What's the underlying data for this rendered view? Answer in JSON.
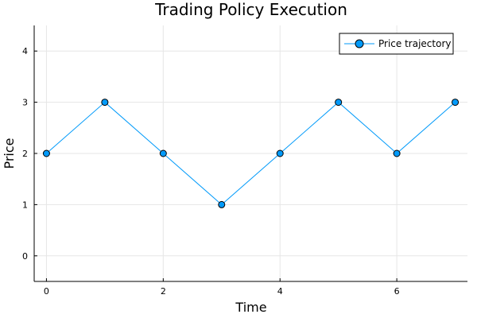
{
  "chart_data": {
    "type": "line",
    "title": "Trading Policy Execution",
    "xlabel": "Time",
    "ylabel": "Price",
    "x": [
      0,
      1,
      2,
      3,
      4,
      5,
      6,
      7
    ],
    "series": [
      {
        "name": "Price trajectory",
        "values": [
          2,
          3,
          2,
          1,
          2,
          3,
          2,
          3
        ],
        "color": "#009AFA"
      }
    ],
    "xlim": [
      -0.21,
      7.21
    ],
    "ylim": [
      -0.5,
      4.5
    ],
    "xticks": [
      0,
      2,
      4,
      6
    ],
    "yticks": [
      0,
      1,
      2,
      3,
      4
    ],
    "grid": true,
    "legend_position": "top-right",
    "marker": "circle"
  }
}
